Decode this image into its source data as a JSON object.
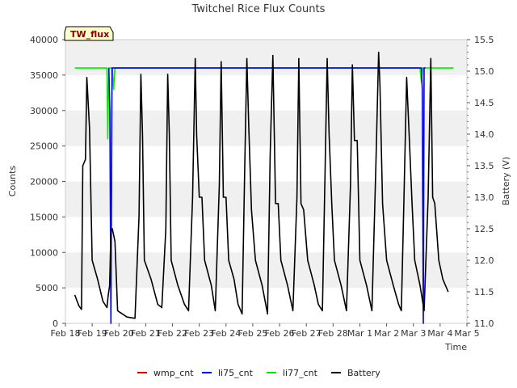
{
  "chart_data": {
    "type": "line",
    "title": "Twitchel Rice Flux Counts",
    "xlabel": "Time",
    "ylabel": "Counts",
    "y2label": "Battery (V)",
    "ylim": [
      0,
      40000
    ],
    "y2lim": [
      11.0,
      15.5
    ],
    "xlim": [
      0,
      15
    ],
    "yticks": [
      "0",
      "5000",
      "10000",
      "15000",
      "20000",
      "25000",
      "30000",
      "35000",
      "40000"
    ],
    "y2ticks": [
      "11.0",
      "11.5",
      "12.0",
      "12.5",
      "13.0",
      "13.5",
      "14.0",
      "14.5",
      "15.0",
      "15.5"
    ],
    "xticks": [
      "Feb 18",
      "Feb 19",
      "Feb 20",
      "Feb 21",
      "Feb 22",
      "Feb 23",
      "Feb 24",
      "Feb 25",
      "Feb 26",
      "Feb 27",
      "Feb 28",
      "Mar 1",
      "Mar 2",
      "Mar 3",
      "Mar 4",
      "Mar 5"
    ],
    "annotation": "TW_flux",
    "legend_position": "bottom-center",
    "series": [
      {
        "name": "wmp_cnt",
        "color": "#dd0000",
        "axis": "left",
        "points": []
      },
      {
        "name": "li75_cnt",
        "color": "#0000dd",
        "axis": "left",
        "points": [
          [
            1.62,
            36000
          ],
          [
            1.66,
            30000
          ],
          [
            1.7,
            0
          ],
          [
            1.74,
            36000
          ],
          [
            1.8,
            36000
          ],
          [
            13.3,
            36000
          ],
          [
            13.33,
            33000
          ],
          [
            13.37,
            0
          ],
          [
            13.4,
            36000
          ],
          [
            13.45,
            36000
          ]
        ]
      },
      {
        "name": "li77_cnt",
        "color": "#00ee00",
        "axis": "left",
        "points": [
          [
            0.35,
            36000
          ],
          [
            1.55,
            36000
          ],
          [
            1.58,
            26000
          ],
          [
            1.62,
            36000
          ],
          [
            1.75,
            36000
          ],
          [
            1.8,
            33000
          ],
          [
            1.85,
            36000
          ],
          [
            13.25,
            36000
          ],
          [
            13.3,
            34000
          ],
          [
            13.35,
            36000
          ],
          [
            14.5,
            36000
          ]
        ]
      },
      {
        "name": "Battery",
        "color": "#000000",
        "axis": "right",
        "points": [
          [
            0.35,
            11.45
          ],
          [
            0.5,
            11.28
          ],
          [
            0.6,
            11.22
          ],
          [
            0.65,
            13.5
          ],
          [
            0.75,
            13.6
          ],
          [
            0.8,
            14.9
          ],
          [
            0.9,
            14.1
          ],
          [
            1.0,
            12.0
          ],
          [
            1.2,
            11.7
          ],
          [
            1.4,
            11.35
          ],
          [
            1.55,
            11.25
          ],
          [
            1.6,
            11.45
          ],
          [
            1.65,
            11.6
          ],
          [
            1.7,
            12.45
          ],
          [
            1.75,
            12.5
          ],
          [
            1.85,
            12.3
          ],
          [
            1.95,
            11.2
          ],
          [
            2.3,
            11.1
          ],
          [
            2.6,
            11.08
          ],
          [
            2.75,
            12.7
          ],
          [
            2.82,
            14.95
          ],
          [
            2.88,
            14.0
          ],
          [
            2.95,
            12.0
          ],
          [
            3.2,
            11.7
          ],
          [
            3.45,
            11.3
          ],
          [
            3.6,
            11.25
          ],
          [
            3.75,
            12.5
          ],
          [
            3.82,
            14.95
          ],
          [
            3.88,
            14.0
          ],
          [
            3.95,
            12.0
          ],
          [
            4.2,
            11.6
          ],
          [
            4.45,
            11.3
          ],
          [
            4.6,
            11.2
          ],
          [
            4.75,
            13.0
          ],
          [
            4.85,
            15.2
          ],
          [
            4.9,
            14.0
          ],
          [
            5.0,
            13.0
          ],
          [
            5.1,
            13.0
          ],
          [
            5.2,
            12.0
          ],
          [
            5.45,
            11.6
          ],
          [
            5.6,
            11.2
          ],
          [
            5.75,
            13.2
          ],
          [
            5.82,
            15.15
          ],
          [
            5.9,
            13.0
          ],
          [
            6.0,
            13.0
          ],
          [
            6.1,
            12.0
          ],
          [
            6.3,
            11.7
          ],
          [
            6.45,
            11.3
          ],
          [
            6.6,
            11.15
          ],
          [
            6.7,
            13.5
          ],
          [
            6.78,
            15.2
          ],
          [
            6.85,
            14.1
          ],
          [
            6.95,
            12.8
          ],
          [
            7.1,
            12.0
          ],
          [
            7.35,
            11.6
          ],
          [
            7.55,
            11.15
          ],
          [
            7.65,
            13.7
          ],
          [
            7.75,
            15.25
          ],
          [
            7.85,
            12.9
          ],
          [
            7.95,
            12.9
          ],
          [
            8.05,
            12.0
          ],
          [
            8.3,
            11.6
          ],
          [
            8.5,
            11.2
          ],
          [
            8.65,
            13.0
          ],
          [
            8.72,
            15.2
          ],
          [
            8.8,
            12.9
          ],
          [
            8.9,
            12.8
          ],
          [
            9.05,
            12.0
          ],
          [
            9.3,
            11.6
          ],
          [
            9.45,
            11.3
          ],
          [
            9.6,
            11.2
          ],
          [
            9.7,
            13.4
          ],
          [
            9.78,
            15.2
          ],
          [
            9.85,
            14.0
          ],
          [
            9.95,
            12.9
          ],
          [
            10.05,
            12.0
          ],
          [
            10.3,
            11.6
          ],
          [
            10.5,
            11.2
          ],
          [
            10.65,
            13.2
          ],
          [
            10.72,
            15.1
          ],
          [
            10.8,
            13.9
          ],
          [
            10.9,
            13.9
          ],
          [
            11.0,
            12.0
          ],
          [
            11.25,
            11.6
          ],
          [
            11.45,
            11.2
          ],
          [
            11.6,
            13.5
          ],
          [
            11.7,
            15.3
          ],
          [
            11.75,
            14.8
          ],
          [
            11.85,
            12.9
          ],
          [
            12.0,
            12.0
          ],
          [
            12.25,
            11.6
          ],
          [
            12.45,
            11.3
          ],
          [
            12.55,
            11.2
          ],
          [
            12.65,
            13.0
          ],
          [
            12.75,
            14.9
          ],
          [
            12.85,
            13.9
          ],
          [
            12.95,
            12.9
          ],
          [
            13.05,
            12.0
          ],
          [
            13.25,
            11.6
          ],
          [
            13.4,
            11.2
          ],
          [
            13.55,
            13.0
          ],
          [
            13.65,
            15.2
          ],
          [
            13.72,
            13.0
          ],
          [
            13.8,
            12.9
          ],
          [
            13.95,
            12.0
          ],
          [
            14.1,
            11.7
          ],
          [
            14.3,
            11.5
          ]
        ]
      }
    ]
  }
}
